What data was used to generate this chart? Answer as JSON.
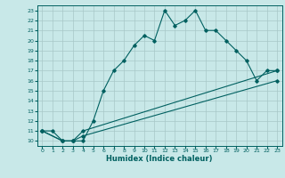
{
  "xlabel": "Humidex (Indice chaleur)",
  "bg_color": "#c8e8e8",
  "grid_color": "#a8c8c8",
  "line_color": "#006060",
  "xlim": [
    -0.5,
    23.5
  ],
  "ylim": [
    9.5,
    23.5
  ],
  "xticks": [
    0,
    1,
    2,
    3,
    4,
    5,
    6,
    7,
    8,
    9,
    10,
    11,
    12,
    13,
    14,
    15,
    16,
    17,
    18,
    19,
    20,
    21,
    22,
    23
  ],
  "yticks": [
    10,
    11,
    12,
    13,
    14,
    15,
    16,
    17,
    18,
    19,
    20,
    21,
    22,
    23
  ],
  "series0": {
    "x": [
      0,
      1,
      2,
      3,
      4,
      5,
      6,
      7,
      8,
      9,
      10,
      11,
      12,
      13,
      14,
      15,
      16,
      17,
      18,
      19,
      20,
      21,
      22,
      23
    ],
    "y": [
      11,
      11,
      10,
      10,
      10,
      12,
      15,
      17,
      18,
      19.5,
      20.5,
      20,
      23,
      21.5,
      22,
      23,
      21,
      21,
      20,
      19,
      18,
      16,
      17,
      17
    ]
  },
  "series1": {
    "x": [
      0,
      2,
      3,
      4,
      23
    ],
    "y": [
      11,
      10,
      10,
      11,
      17
    ]
  },
  "series2": {
    "x": [
      0,
      2,
      3,
      4,
      23
    ],
    "y": [
      11,
      10,
      10,
      10.5,
      16
    ]
  }
}
